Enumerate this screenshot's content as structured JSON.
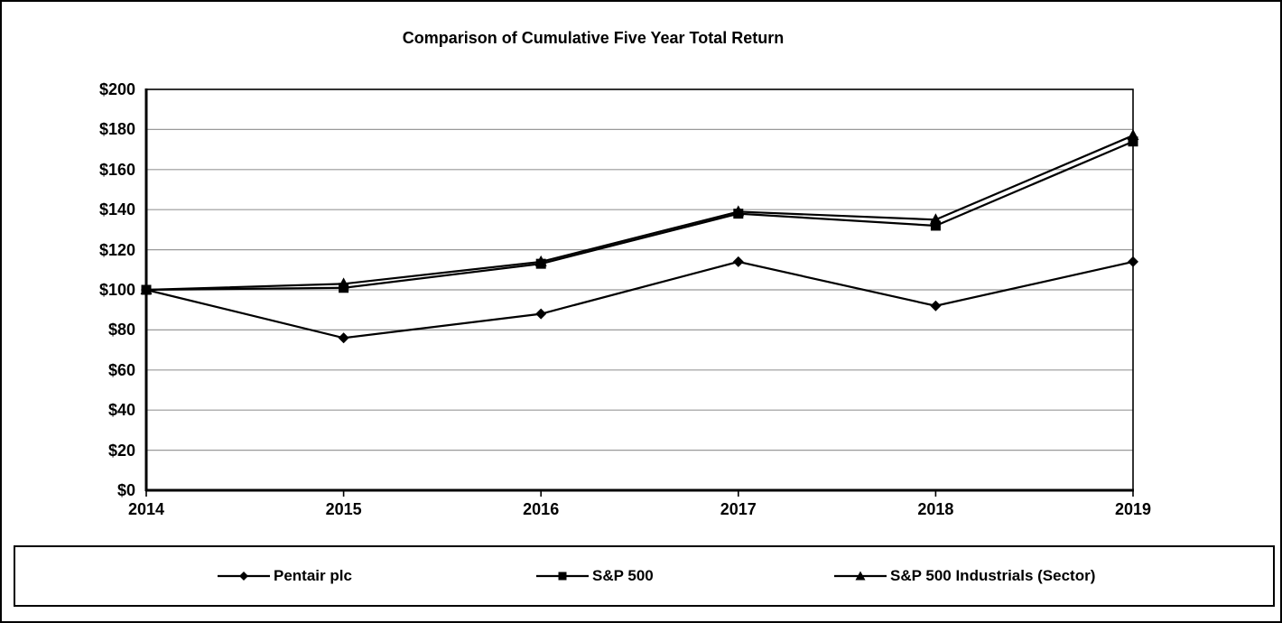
{
  "chart_data": {
    "type": "line",
    "title": "Comparison of Cumulative Five Year Total Return",
    "categories": [
      "2014",
      "2015",
      "2016",
      "2017",
      "2018",
      "2019"
    ],
    "series": [
      {
        "name": "Pentair plc",
        "marker": "diamond",
        "values": [
          100,
          76,
          88,
          114,
          92,
          114
        ]
      },
      {
        "name": "S&P 500",
        "marker": "square",
        "values": [
          100,
          101,
          113,
          138,
          132,
          174
        ]
      },
      {
        "name": "S&P 500 Industrials (Sector)",
        "marker": "triangle",
        "values": [
          100,
          103,
          114,
          139,
          135,
          177
        ]
      }
    ],
    "ylim": [
      0,
      200
    ],
    "ytick_step": 20,
    "ytick_labels": [
      "$0",
      "$20",
      "$40",
      "$60",
      "$80",
      "$100",
      "$120",
      "$140",
      "$160",
      "$180",
      "$200"
    ],
    "grid": true,
    "legend_position": "bottom",
    "colors": {
      "line": "#000000",
      "marker": "#000000",
      "grid": "#999999",
      "axis": "#000000",
      "background": "#ffffff"
    }
  }
}
